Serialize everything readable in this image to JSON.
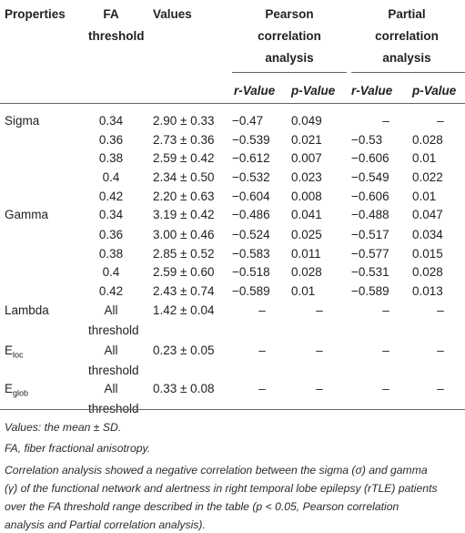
{
  "headers": {
    "properties": "Properties",
    "fa_threshold": [
      "FA",
      "threshold"
    ],
    "values": "Values",
    "pearson": [
      "Pearson",
      "correlation",
      "analysis"
    ],
    "partial": [
      "Partial",
      "correlation",
      "analysis"
    ],
    "pearson_r": "r-Value",
    "pearson_p": "p-Value",
    "partial_r": "r-Value",
    "partial_p": "p-Value"
  },
  "rows": [
    {
      "property": "Sigma",
      "fa": "0.34",
      "value": "2.90 ± 0.33",
      "pr": "−0.47",
      "pp": "0.049",
      "qr": "–",
      "qp": "–"
    },
    {
      "property": "",
      "fa": "0.36",
      "value": "2.73 ± 0.36",
      "pr": "−0.539",
      "pp": "0.021",
      "qr": "−0.53",
      "qp": "0.028"
    },
    {
      "property": "",
      "fa": "0.38",
      "value": "2.59 ± 0.42",
      "pr": "−0.612",
      "pp": "0.007",
      "qr": "−0.606",
      "qp": "0.01"
    },
    {
      "property": "",
      "fa": "0.4",
      "value": "2.34 ± 0.50",
      "pr": "−0.532",
      "pp": "0.023",
      "qr": "−0.549",
      "qp": "0.022"
    },
    {
      "property": "",
      "fa": "0.42",
      "value": "2.20 ± 0.63",
      "pr": "−0.604",
      "pp": "0.008",
      "qr": "−0.606",
      "qp": "0.01"
    },
    {
      "property": "Gamma",
      "fa": "0.34",
      "value": "3.19 ± 0.42",
      "pr": "−0.486",
      "pp": "0.041",
      "qr": "−0.488",
      "qp": "0.047"
    },
    {
      "property": "",
      "fa": "0.36",
      "value": "3.00 ± 0.46",
      "pr": "−0.524",
      "pp": "0.025",
      "qr": "−0.517",
      "qp": "0.034"
    },
    {
      "property": "",
      "fa": "0.38",
      "value": "2.85 ± 0.52",
      "pr": "−0.583",
      "pp": "0.011",
      "qr": "−0.577",
      "qp": "0.015"
    },
    {
      "property": "",
      "fa": "0.4",
      "value": "2.59 ± 0.60",
      "pr": "−0.518",
      "pp": "0.028",
      "qr": "−0.531",
      "qp": "0.028"
    },
    {
      "property": "",
      "fa": "0.42",
      "value": "2.43 ± 0.74",
      "pr": "−0.589",
      "pp": "0.01",
      "qr": "−0.589",
      "qp": "0.013"
    }
  ],
  "tail_rows": [
    {
      "property": "Lambda",
      "property_sub": "",
      "fa": [
        "All",
        "threshold"
      ],
      "value": "1.42 ± 0.04",
      "pr": "–",
      "pp": "–",
      "qr": "–",
      "qp": "–"
    },
    {
      "property": "E",
      "property_sub": "loc",
      "fa": [
        "All",
        "threshold"
      ],
      "value": "0.23 ± 0.05",
      "pr": "–",
      "pp": "–",
      "qr": "–",
      "qp": "–"
    },
    {
      "property": "E",
      "property_sub": "glob",
      "fa": [
        "All",
        "threshold"
      ],
      "value": "0.33 ± 0.08",
      "pr": "–",
      "pp": "–",
      "qr": "–",
      "qp": "–"
    }
  ],
  "notes": [
    "Values: the mean ± SD.",
    "FA, fiber fractional anisotropy.",
    "Correlation analysis showed a negative correlation between the sigma (σ) and gamma",
    "(γ) of the functional network and alertness in right temporal lobe epilepsy (rTLE) patients",
    "over the FA threshold range described in the table (p < 0.05, Pearson correlation",
    "analysis and Partial correlation analysis)."
  ]
}
